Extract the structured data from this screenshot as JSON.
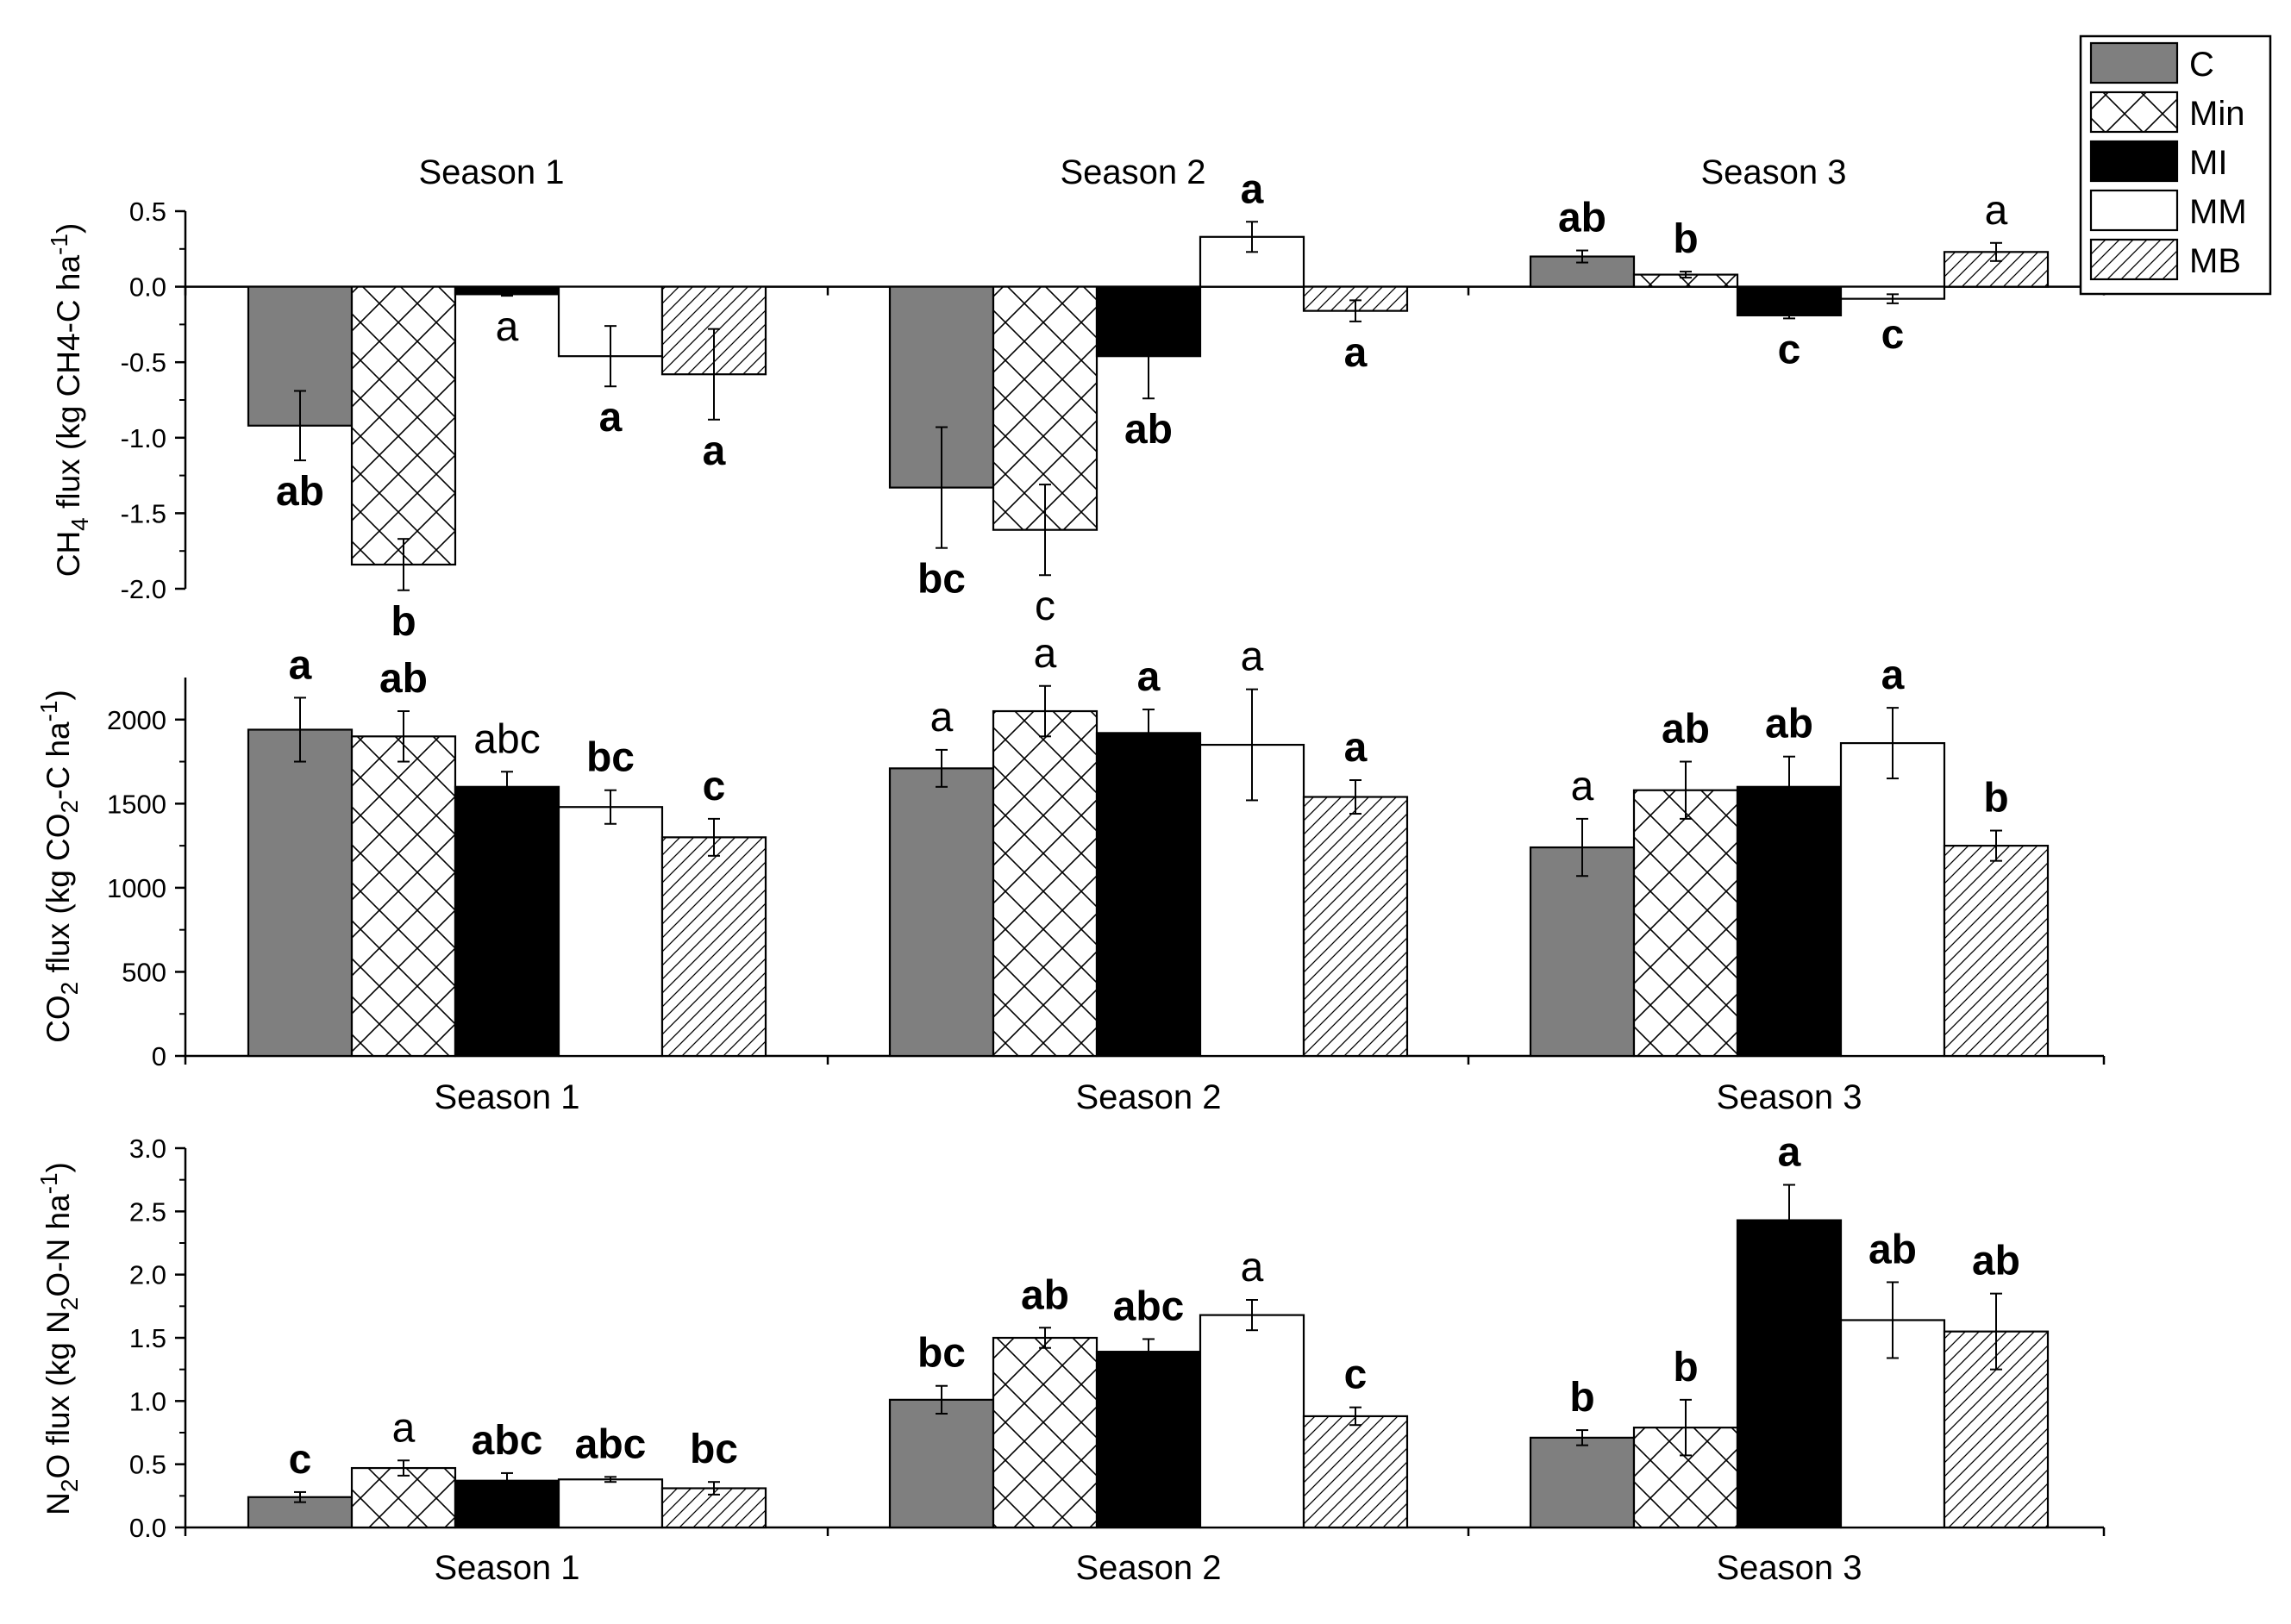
{
  "figure": {
    "legend": {
      "placement": "top-right",
      "entries": [
        {
          "key": "C",
          "label": "C"
        },
        {
          "key": "Min",
          "label": "Min"
        },
        {
          "key": "MI",
          "label": "MI"
        },
        {
          "key": "MM",
          "label": "MM"
        },
        {
          "key": "MB",
          "label": "MB"
        }
      ]
    },
    "series_styles": {
      "C": {
        "fill": "#7f7f7f",
        "pattern": "solid"
      },
      "Min": {
        "fill": "#ffffff",
        "pattern": "crosshatch"
      },
      "MI": {
        "fill": "#000000",
        "pattern": "solid"
      },
      "MM": {
        "fill": "#ffffff",
        "pattern": "solid"
      },
      "MB": {
        "fill": "#ffffff",
        "pattern": "diagonal"
      }
    }
  },
  "chart_data": [
    {
      "type": "bar",
      "ylabel": "CH4 flux (kg CH4-C ha-1)",
      "ylabel_parts": {
        "prefix": "CH",
        "sub": "4",
        "mid": " flux (kg CH4-C ha",
        "sup": "-1",
        "suffix": ")"
      },
      "ylim": [
        -2.0,
        0.5
      ],
      "yticks": [
        "0.5",
        "0.0",
        "-0.5",
        "-1.0",
        "-1.5",
        "-2.0"
      ],
      "ytick_values": [
        0.5,
        0.0,
        -0.5,
        -1.0,
        -1.5,
        -2.0
      ],
      "season_labels_position": "top",
      "categories": [
        "Season 1",
        "Season 2",
        "Season 3"
      ],
      "series": [
        {
          "name": "C",
          "values": [
            -0.92,
            -1.33,
            0.2
          ],
          "errors": [
            0.23,
            0.4,
            0.04
          ],
          "letters": [
            "ab",
            "bc",
            "ab"
          ],
          "bold": [
            true,
            true,
            true
          ]
        },
        {
          "name": "Min",
          "values": [
            -1.84,
            -1.61,
            0.08
          ],
          "errors": [
            0.17,
            0.3,
            0.02
          ],
          "letters": [
            "b",
            "c",
            "b"
          ],
          "bold": [
            true,
            false,
            true
          ]
        },
        {
          "name": "MI",
          "values": [
            -0.05,
            -0.46,
            -0.19
          ],
          "errors": [
            0.01,
            0.28,
            0.02
          ],
          "letters": [
            "a",
            "ab",
            "c"
          ],
          "bold": [
            false,
            true,
            true
          ]
        },
        {
          "name": "MM",
          "values": [
            -0.46,
            0.33,
            -0.08
          ],
          "errors": [
            0.2,
            0.1,
            0.03
          ],
          "letters": [
            "a",
            "a",
            "c"
          ],
          "bold": [
            true,
            true,
            true
          ]
        },
        {
          "name": "MB",
          "values": [
            -0.58,
            -0.16,
            0.23
          ],
          "errors": [
            0.3,
            0.07,
            0.06
          ],
          "letters": [
            "a",
            "a",
            "a"
          ],
          "bold": [
            true,
            true,
            false
          ]
        }
      ]
    },
    {
      "type": "bar",
      "ylabel": "CO2 flux (kg CO2-C ha-1)",
      "ylabel_parts": {
        "prefix": "CO",
        "sub": "2",
        "mid": " flux (kg CO",
        "sub2": "2",
        "mid2": "-C ha",
        "sup": "-1",
        "suffix": ")"
      },
      "ylim": [
        0,
        2250
      ],
      "yticks": [
        "0",
        "500",
        "1000",
        "1500",
        "2000"
      ],
      "ytick_values": [
        0,
        500,
        1000,
        1500,
        2000
      ],
      "season_labels_position": "bottom",
      "categories": [
        "Season 1",
        "Season 2",
        "Season 3"
      ],
      "series": [
        {
          "name": "C",
          "values": [
            1940,
            1710,
            1240
          ],
          "errors": [
            190,
            110,
            170
          ],
          "letters": [
            "a",
            "a",
            "a"
          ],
          "bold": [
            true,
            false,
            false
          ]
        },
        {
          "name": "Min",
          "values": [
            1900,
            2050,
            1580
          ],
          "errors": [
            150,
            150,
            170
          ],
          "letters": [
            "ab",
            "a",
            "ab"
          ],
          "bold": [
            true,
            false,
            true
          ]
        },
        {
          "name": "MI",
          "values": [
            1600,
            1920,
            1600
          ],
          "errors": [
            90,
            140,
            180
          ],
          "letters": [
            "abc",
            "a",
            "ab"
          ],
          "bold": [
            false,
            true,
            true
          ]
        },
        {
          "name": "MM",
          "values": [
            1480,
            1850,
            1860
          ],
          "errors": [
            100,
            330,
            210
          ],
          "letters": [
            "bc",
            "a",
            "a"
          ],
          "bold": [
            true,
            false,
            true
          ]
        },
        {
          "name": "MB",
          "values": [
            1300,
            1540,
            1250
          ],
          "errors": [
            110,
            100,
            90
          ],
          "letters": [
            "c",
            "a",
            "b"
          ],
          "bold": [
            true,
            true,
            true
          ]
        }
      ]
    },
    {
      "type": "bar",
      "ylabel": "N2O flux (kg N2O-N ha-1)",
      "ylabel_parts": {
        "prefix": "N",
        "sub": "2",
        "mid": "O flux (kg N",
        "sub2": "2",
        "mid2": "O-N ha",
        "sup": "-1",
        "suffix": ")"
      },
      "ylim": [
        0,
        3.0
      ],
      "yticks": [
        "0.0",
        "0.5",
        "1.0",
        "1.5",
        "2.0",
        "2.5",
        "3.0"
      ],
      "ytick_values": [
        0,
        0.5,
        1.0,
        1.5,
        2.0,
        2.5,
        3.0
      ],
      "season_labels_position": "bottom",
      "categories": [
        "Season 1",
        "Season 2",
        "Season 3"
      ],
      "series": [
        {
          "name": "C",
          "values": [
            0.24,
            1.01,
            0.71
          ],
          "errors": [
            0.04,
            0.11,
            0.06
          ],
          "letters": [
            "c",
            "bc",
            "b"
          ],
          "bold": [
            true,
            true,
            true
          ]
        },
        {
          "name": "Min",
          "values": [
            0.47,
            1.5,
            0.79
          ],
          "errors": [
            0.06,
            0.08,
            0.22
          ],
          "letters": [
            "a",
            "ab",
            "b"
          ],
          "bold": [
            false,
            true,
            true
          ]
        },
        {
          "name": "MI",
          "values": [
            0.37,
            1.39,
            2.43
          ],
          "errors": [
            0.06,
            0.1,
            0.28
          ],
          "letters": [
            "abc",
            "abc",
            "a"
          ],
          "bold": [
            true,
            true,
            true
          ]
        },
        {
          "name": "MM",
          "values": [
            0.38,
            1.68,
            1.64
          ],
          "errors": [
            0.02,
            0.12,
            0.3
          ],
          "letters": [
            "abc",
            "a",
            "ab"
          ],
          "bold": [
            true,
            false,
            true
          ]
        },
        {
          "name": "MB",
          "values": [
            0.31,
            0.88,
            1.55
          ],
          "errors": [
            0.05,
            0.07,
            0.3
          ],
          "letters": [
            "bc",
            "c",
            "ab"
          ],
          "bold": [
            true,
            true,
            true
          ]
        }
      ]
    }
  ]
}
